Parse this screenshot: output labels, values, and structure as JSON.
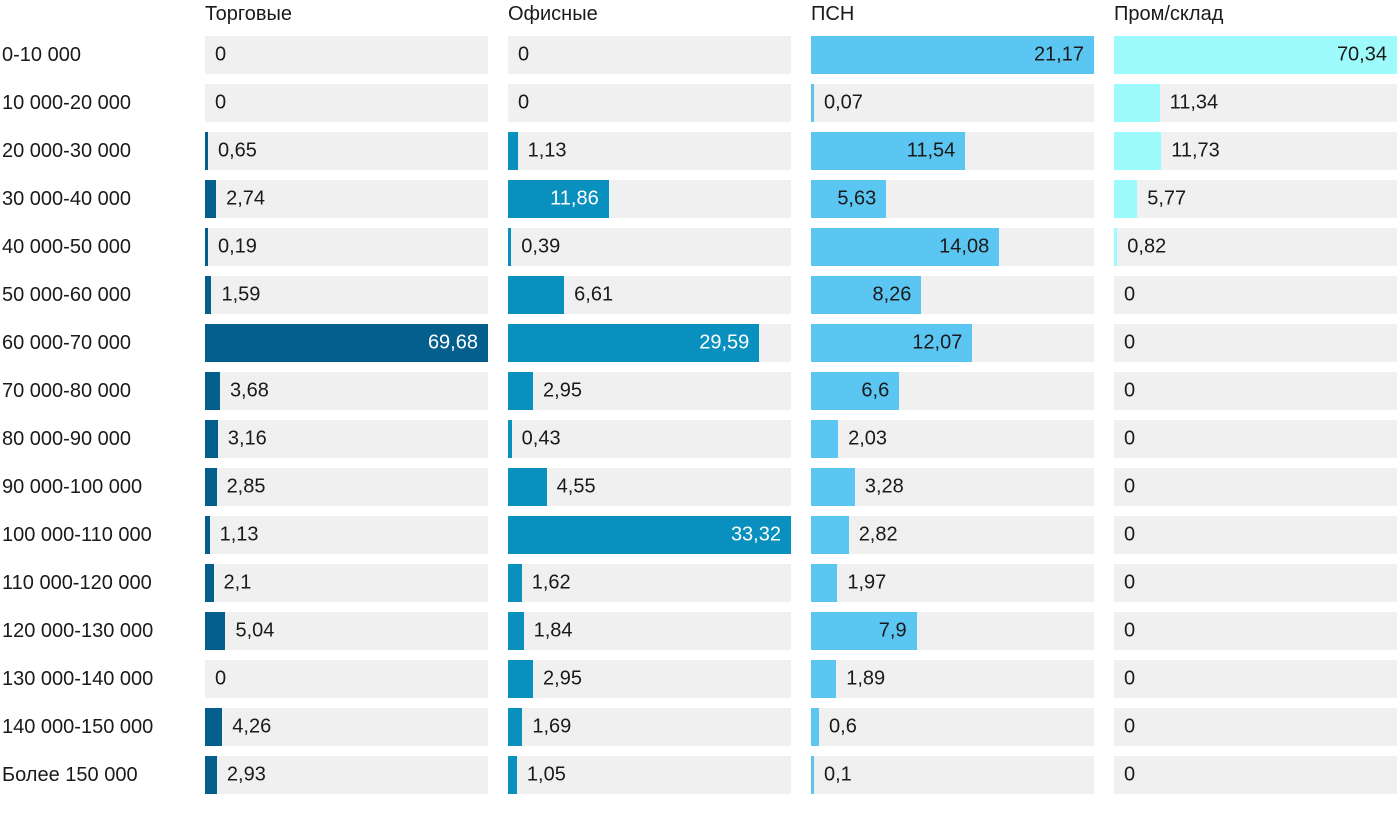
{
  "chart_data": {
    "type": "bar",
    "orientation": "horizontal",
    "title": "",
    "xlabel": "",
    "ylabel": "",
    "grid": false,
    "legend_position": "column-headers-top",
    "track_color": "#f0f0f0",
    "label_color": "#1a1a1a",
    "categories": [
      "0-10 000",
      "10 000-20 000",
      "20 000-30 000",
      "30 000-40 000",
      "40 000-50 000",
      "50 000-60 000",
      "60 000-70 000",
      "70 000-80 000",
      "80 000-90 000",
      "90 000-100 000",
      "100 000-110 000",
      "110 000-120 000",
      "120 000-130 000",
      "130 000-140 000",
      "140 000-150 000",
      "Более 150 000"
    ],
    "series": [
      {
        "name": "Торговые",
        "bar_color": "#045f8c",
        "inside_label_color": "#ffffff",
        "axis_max": 69.68,
        "values": [
          0,
          0,
          0.65,
          2.74,
          0.19,
          1.59,
          69.68,
          3.68,
          3.16,
          2.85,
          1.13,
          2.1,
          5.04,
          0,
          4.26,
          2.93
        ],
        "labels": [
          "0",
          "0",
          "0,65",
          "2,74",
          "0,19",
          "1,59",
          "69,68",
          "3,68",
          "3,16",
          "2,85",
          "1,13",
          "2,1",
          "5,04",
          "0",
          "4,26",
          "2,93"
        ]
      },
      {
        "name": "Офисные",
        "bar_color": "#0990be",
        "inside_label_color": "#ffffff",
        "axis_max": 33.32,
        "values": [
          0,
          0,
          1.13,
          11.86,
          0.39,
          6.61,
          29.59,
          2.95,
          0.43,
          4.55,
          33.32,
          1.62,
          1.84,
          2.95,
          1.69,
          1.05
        ],
        "labels": [
          "0",
          "0",
          "1,13",
          "11,86",
          "0,39",
          "6,61",
          "29,59",
          "2,95",
          "0,43",
          "4,55",
          "33,32",
          "1,62",
          "1,84",
          "2,95",
          "1,69",
          "1,05"
        ]
      },
      {
        "name": "ПСН",
        "bar_color": "#5cc6f2",
        "inside_label_color": "#1a1a1a",
        "axis_max": 21.17,
        "values": [
          21.17,
          0.07,
          11.54,
          5.63,
          14.08,
          8.26,
          12.07,
          6.6,
          2.03,
          3.28,
          2.82,
          1.97,
          7.9,
          1.89,
          0.6,
          0.1
        ],
        "labels": [
          "21,17",
          "0,07",
          "11,54",
          "5,63",
          "14,08",
          "8,26",
          "12,07",
          "6,6",
          "2,03",
          "3,28",
          "2,82",
          "1,97",
          "7,9",
          "1,89",
          "0,6",
          "0,1"
        ]
      },
      {
        "name": "Пром/склад",
        "bar_color": "#9efbfb",
        "inside_label_color": "#1a1a1a",
        "axis_max": 70.34,
        "values": [
          70.34,
          11.34,
          11.73,
          5.77,
          0.82,
          0,
          0,
          0,
          0,
          0,
          0,
          0,
          0,
          0,
          0,
          0
        ],
        "labels": [
          "70,34",
          "11,34",
          "11,73",
          "5,77",
          "0,82",
          "0",
          "0",
          "0",
          "0",
          "0",
          "0",
          "0",
          "0",
          "0",
          "0",
          "0"
        ]
      }
    ]
  }
}
